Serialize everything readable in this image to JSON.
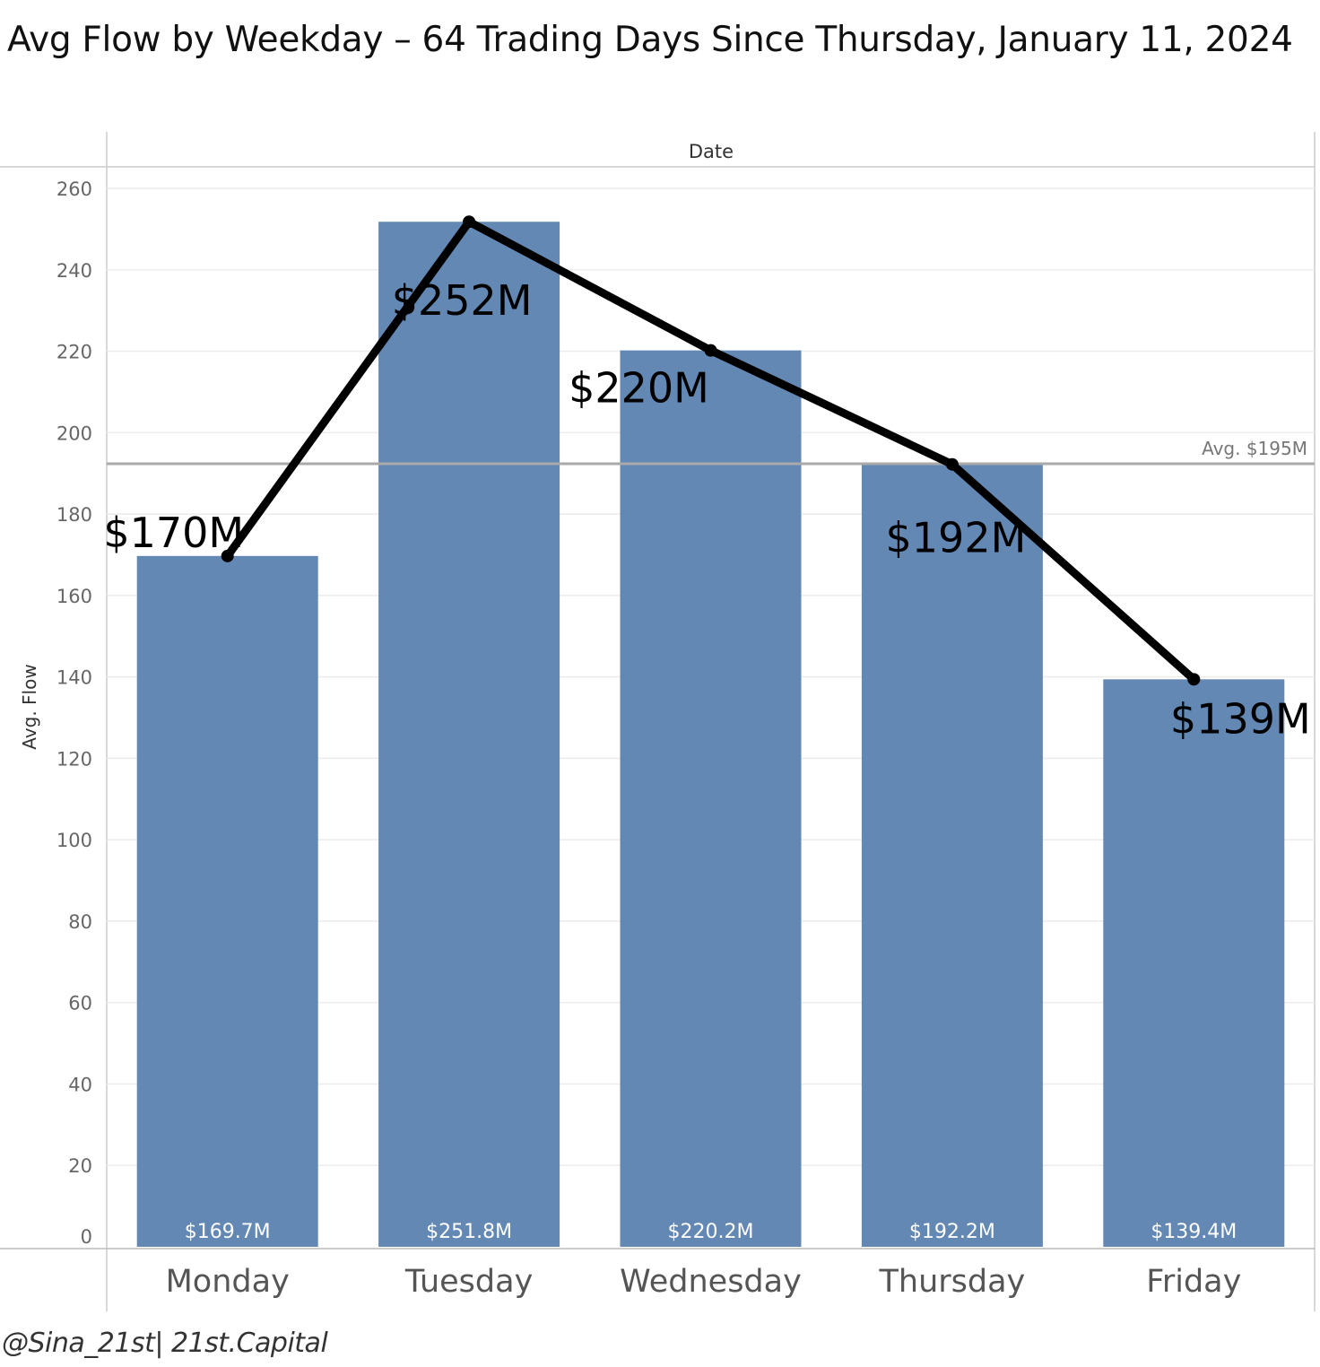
{
  "chart_data": {
    "type": "bar",
    "title": "Avg Flow by Weekday – 64 Trading Days Since Thursday, January 11, 2024",
    "column_header": "Date",
    "ylabel": "Avg. Flow",
    "xlabel": "",
    "ylim": [
      0,
      260
    ],
    "yticks": [
      0,
      20,
      40,
      60,
      80,
      100,
      120,
      140,
      160,
      180,
      200,
      220,
      240,
      260
    ],
    "grid": true,
    "categories": [
      "Monday",
      "Tuesday",
      "Wednesday",
      "Thursday",
      "Friday"
    ],
    "values": [
      169.7,
      251.8,
      220.2,
      192.2,
      139.4
    ],
    "bar_labels": [
      "$169.7M",
      "$251.8M",
      "$220.2M",
      "$192.2M",
      "$139.4M"
    ],
    "line_labels": [
      "$170M",
      "$252M",
      "$220M",
      "$192M",
      "$139M"
    ],
    "average_line": {
      "value": 195,
      "label": "Avg. $195M"
    },
    "colors": {
      "bar": "#6388b4",
      "line": "#000000",
      "average_line": "#aaaaaa"
    }
  },
  "credit": "@Sina_21st| 21st.Capital"
}
